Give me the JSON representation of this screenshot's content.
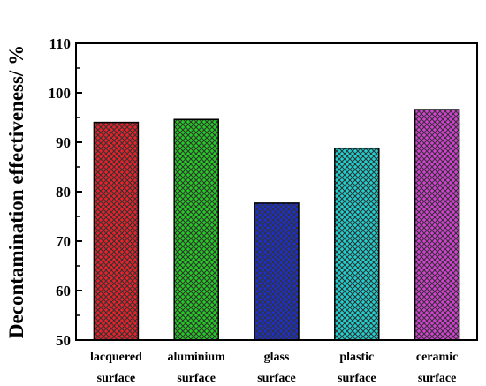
{
  "chart_data": {
    "type": "bar",
    "title": "",
    "xlabel": "",
    "ylabel": "Decontamination effectiveness/ %",
    "ylim": [
      50,
      110
    ],
    "yticks": [
      50,
      60,
      70,
      80,
      90,
      100,
      110
    ],
    "grid": false,
    "bar_pattern": "crosshatch",
    "categories": [
      [
        "lacquered",
        "surface"
      ],
      [
        "aluminium",
        "surface"
      ],
      [
        "glass",
        "surface"
      ],
      [
        "plastic",
        "surface"
      ],
      [
        "ceramic",
        "surface"
      ]
    ],
    "values": [
      94.0,
      94.6,
      77.7,
      88.8,
      96.6
    ],
    "colors": [
      "#e8212a",
      "#22cc22",
      "#1a2fcf",
      "#1fd1d1",
      "#d43fd4"
    ]
  }
}
